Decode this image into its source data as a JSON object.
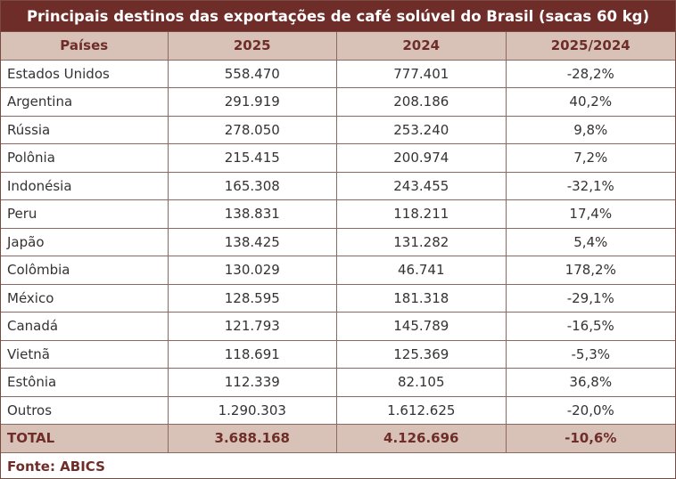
{
  "title": "Principais destinos das exportações de café solúvel do Brasil (sacas 60 kg)",
  "table": {
    "header": [
      "Países",
      "2025",
      "2024",
      "2025/2024"
    ],
    "rows": [
      [
        "Estados Unidos",
        "558.470",
        "777.401",
        "-28,2%"
      ],
      [
        "Argentina",
        "291.919",
        "208.186",
        "40,2%"
      ],
      [
        "Rússia",
        "278.050",
        "253.240",
        "9,8%"
      ],
      [
        "Polônia",
        "215.415",
        "200.974",
        "7,2%"
      ],
      [
        "Indonésia",
        "165.308",
        "243.455",
        "-32,1%"
      ],
      [
        "Peru",
        "138.831",
        "118.211",
        "17,4%"
      ],
      [
        "Japão",
        "138.425",
        "131.282",
        "5,4%"
      ],
      [
        "Colômbia",
        "130.029",
        "46.741",
        "178,2%"
      ],
      [
        "México",
        "128.595",
        "181.318",
        "-29,1%"
      ],
      [
        "Canadá",
        "121.793",
        "145.789",
        "-16,5%"
      ],
      [
        "Vietnã",
        "118.691",
        "125.369",
        "-5,3%"
      ],
      [
        "Estônia",
        "112.339",
        "82.105",
        "36,8%"
      ],
      [
        "Outros",
        "1.290.303",
        "1.612.625",
        "-20,0%"
      ]
    ],
    "total": [
      "TOTAL",
      "3.688.168",
      "4.126.696",
      "-10,6%"
    ]
  },
  "source": "Fonte: ABICS"
}
